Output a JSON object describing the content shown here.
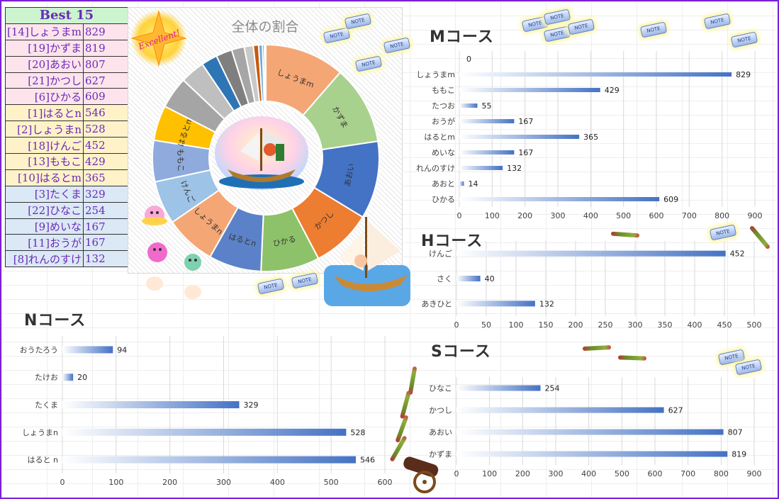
{
  "best": {
    "title": "Best 15",
    "rows": [
      {
        "name": "[14]しょうまm",
        "value": "829",
        "band": "pink"
      },
      {
        "name": "[19]かずま",
        "value": "819",
        "band": "pink"
      },
      {
        "name": "[20]あおい",
        "value": "807",
        "band": "pink"
      },
      {
        "name": "[21]かつし",
        "value": "627",
        "band": "pink"
      },
      {
        "name": "[6]ひかる",
        "value": "609",
        "band": "pink"
      },
      {
        "name": "[1]はるとn",
        "value": "546",
        "band": "yel"
      },
      {
        "name": "[2]しょうまn",
        "value": "528",
        "band": "yel"
      },
      {
        "name": "[18]けんご",
        "value": "452",
        "band": "yel"
      },
      {
        "name": "[13]ももこ",
        "value": "429",
        "band": "yel"
      },
      {
        "name": "[10]はるとm",
        "value": "365",
        "band": "yel"
      },
      {
        "name": "[3]たくま",
        "value": "329",
        "band": "blu"
      },
      {
        "name": "[22]ひなこ",
        "value": "254",
        "band": "blu"
      },
      {
        "name": "[9]めいな",
        "value": "167",
        "band": "blu"
      },
      {
        "name": "[11]おうが",
        "value": "167",
        "band": "blu"
      },
      {
        "name": "[8]れんのすけ",
        "value": "132",
        "band": "blu"
      }
    ]
  },
  "badge": "Excellent!",
  "note_label": "NOTE",
  "colors": {
    "border": "#7a1fd6",
    "bar": "#4472c4",
    "donut_inner_ring": "#ffffff"
  },
  "chart_data": [
    {
      "id": "donut",
      "type": "pie",
      "title": "全体の割合",
      "slices": [
        {
          "label": "しょうまm",
          "value": 829,
          "color": "#f4a774"
        },
        {
          "label": "かずま",
          "value": 819,
          "color": "#a9d18e"
        },
        {
          "label": "あおい",
          "value": 807,
          "color": "#4472c4"
        },
        {
          "label": "かつし",
          "value": 627,
          "color": "#ed7d31"
        },
        {
          "label": "ひかる",
          "value": 609,
          "color": "#8ec26a"
        },
        {
          "label": "はるとn",
          "value": 546,
          "color": "#5b82c8"
        },
        {
          "label": "しょうまn",
          "value": 528,
          "color": "#f4a774"
        },
        {
          "label": "けんご",
          "value": 452,
          "color": "#9dc3e6"
        },
        {
          "label": "ももこ",
          "value": 429,
          "color": "#8faadc"
        },
        {
          "label": "はるとm",
          "value": 365,
          "color": "#ffc000"
        },
        {
          "label": "",
          "value": 329,
          "color": "#a5a5a5"
        },
        {
          "label": "",
          "value": 254,
          "color": "#bfbfbf"
        },
        {
          "label": "",
          "value": 167,
          "color": "#2e75b6"
        },
        {
          "label": "",
          "value": 167,
          "color": "#7f7f7f"
        },
        {
          "label": "",
          "value": 132,
          "color": "#a6a6a6"
        },
        {
          "label": "",
          "value": 94,
          "color": "#c9c9c9"
        },
        {
          "label": "",
          "value": 55,
          "color": "#c55a11"
        },
        {
          "label": "",
          "value": 40,
          "color": "#6fa8dc"
        },
        {
          "label": "",
          "value": 20,
          "color": "#548235"
        },
        {
          "label": "",
          "value": 14,
          "color": "#9dc3e6"
        }
      ]
    },
    {
      "id": "m",
      "type": "bar",
      "title": "Mコース",
      "categories": [
        "",
        "しょうまm",
        "ももこ",
        "たつお",
        "おうが",
        "はるとm",
        "めいな",
        "れんのすけ",
        "あおと",
        "ひかる"
      ],
      "values": [
        0,
        829,
        429,
        55,
        167,
        365,
        167,
        132,
        14,
        609
      ],
      "value_labels": [
        "0",
        "829",
        "429",
        "55",
        "167",
        "365",
        "167",
        "132",
        "14",
        "609"
      ],
      "xlim": [
        0,
        900
      ],
      "ticks": [
        "0",
        "100",
        "200",
        "300",
        "400",
        "500",
        "600",
        "700",
        "800",
        "900"
      ],
      "grid": true
    },
    {
      "id": "h",
      "type": "bar",
      "title": "Hコース",
      "categories": [
        "けんご",
        "さく",
        "あきひと"
      ],
      "values": [
        452,
        40,
        132
      ],
      "value_labels": [
        "452",
        "40",
        "132"
      ],
      "xlim": [
        0,
        500
      ],
      "ticks": [
        "0",
        "50",
        "100",
        "150",
        "200",
        "250",
        "300",
        "350",
        "400",
        "450",
        "500"
      ],
      "grid": true
    },
    {
      "id": "n",
      "type": "bar",
      "title": "Nコース",
      "categories": [
        "おうたろう",
        "たけお",
        "たくま",
        "しょうまn",
        "はると n"
      ],
      "values": [
        94,
        20,
        329,
        528,
        546
      ],
      "value_labels": [
        "94",
        "20",
        "329",
        "528",
        "546"
      ],
      "xlim": [
        0,
        600
      ],
      "ticks": [
        "0",
        "100",
        "200",
        "300",
        "400",
        "500",
        "600"
      ],
      "grid": true
    },
    {
      "id": "s",
      "type": "bar",
      "title": "Sコース",
      "categories": [
        "ひなこ",
        "かつし",
        "あおい",
        "かずま"
      ],
      "values": [
        254,
        627,
        807,
        819
      ],
      "value_labels": [
        "254",
        "627",
        "807",
        "819"
      ],
      "xlim": [
        0,
        900
      ],
      "ticks": [
        "0",
        "100",
        "200",
        "300",
        "400",
        "500",
        "600",
        "700",
        "800",
        "900"
      ],
      "grid": true
    }
  ]
}
